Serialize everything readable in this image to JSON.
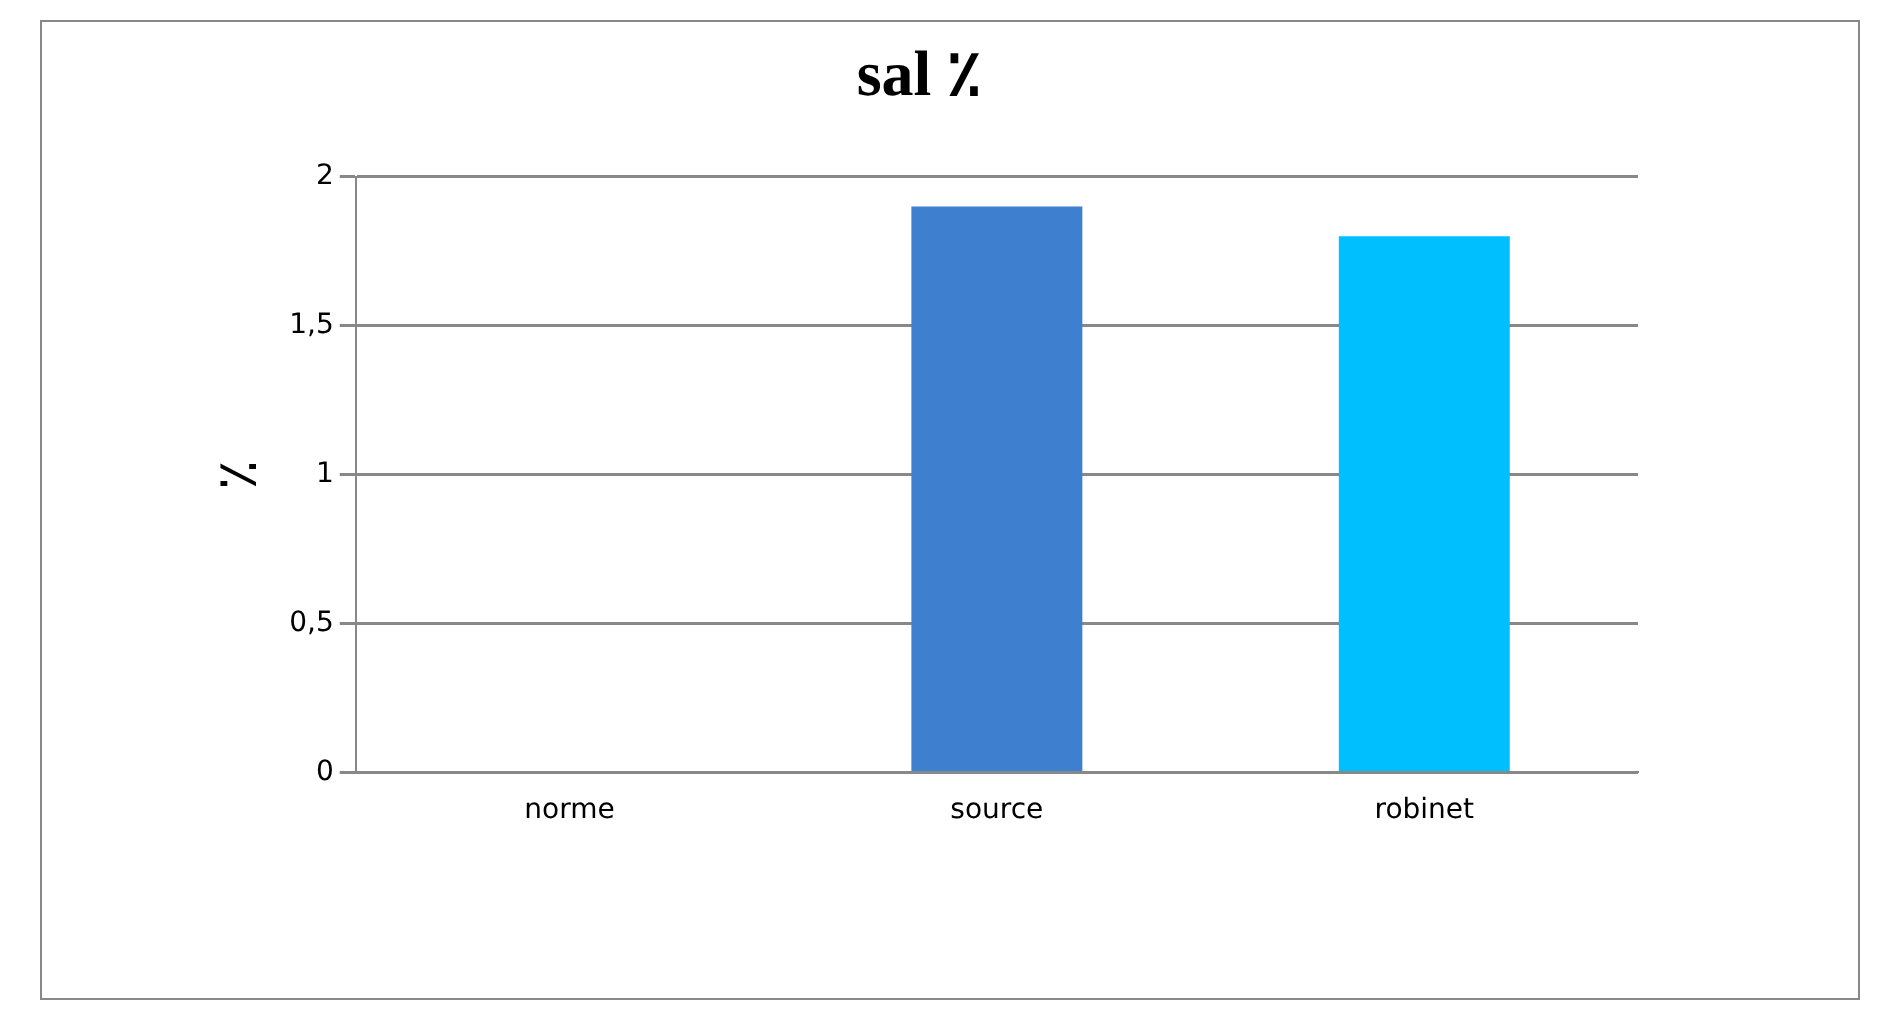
{
  "chart_data": {
    "type": "bar",
    "title": "sal ٪",
    "ylabel": "٪",
    "categories": [
      "norme",
      "source",
      "robinet"
    ],
    "values": [
      0,
      1.9,
      1.8
    ],
    "colors": [
      "#3f7fcf",
      "#3f7fcf",
      "#00bfff"
    ],
    "ylim": [
      0,
      2
    ],
    "yticks": [
      0,
      {
        "value": 0.5,
        "label": "0,5"
      },
      1,
      {
        "value": 1.5,
        "label": "1,5"
      },
      2
    ],
    "grid": "y"
  }
}
